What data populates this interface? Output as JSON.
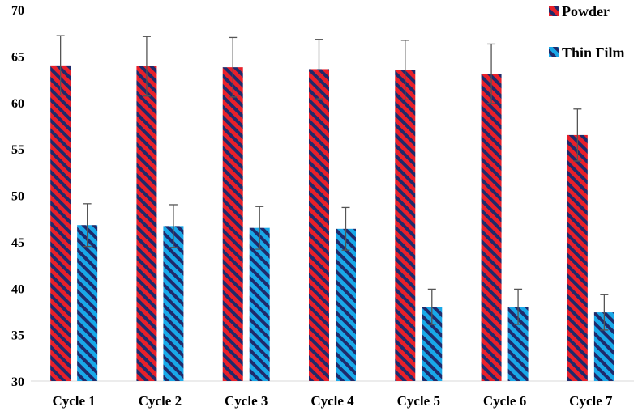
{
  "chart_data": {
    "type": "bar",
    "categories": [
      "Cycle 1",
      "Cycle 2",
      "Cycle 3",
      "Cycle 4",
      "Cycle 5",
      "Cycle 6",
      "Cycle 7"
    ],
    "series": [
      {
        "name": "Powder",
        "color": "#e8202a",
        "stripe": "#1f2a6b",
        "values": [
          64.0,
          63.9,
          63.8,
          63.6,
          63.5,
          63.1,
          56.5
        ],
        "errors": [
          3.2,
          3.2,
          3.2,
          3.2,
          3.2,
          3.2,
          2.8
        ]
      },
      {
        "name": "Thin Film",
        "color": "#19a8e8",
        "stripe": "#1f2a6b",
        "values": [
          46.8,
          46.7,
          46.5,
          46.4,
          38.0,
          38.0,
          37.4
        ],
        "errors": [
          2.3,
          2.3,
          2.3,
          2.3,
          1.9,
          1.9,
          1.9
        ]
      }
    ],
    "title": "",
    "xlabel": "",
    "ylabel": "",
    "ylim": [
      30,
      70
    ],
    "yticks": [
      30,
      35,
      40,
      45,
      50,
      55,
      60,
      65,
      70
    ],
    "grid": false,
    "legend": "top-right"
  }
}
